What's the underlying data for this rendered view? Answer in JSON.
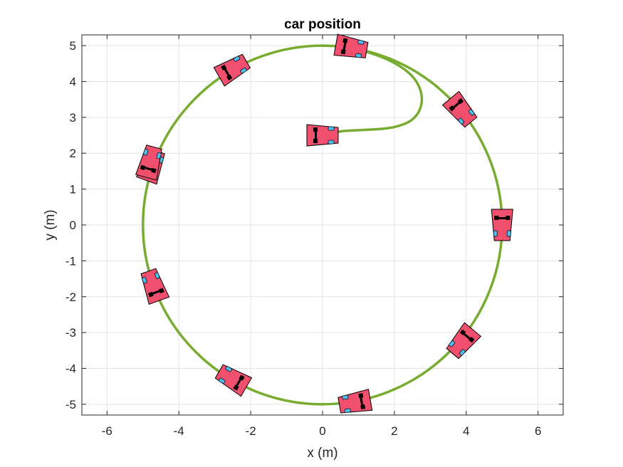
{
  "chart_data": {
    "type": "line",
    "title": "car position",
    "xlabel": "x (m)",
    "ylabel": "y (m)",
    "xlim": [
      -6.7,
      6.7
    ],
    "ylim": [
      -5.3,
      5.3
    ],
    "xticks": [
      -6,
      -4,
      -2,
      0,
      2,
      4,
      6
    ],
    "yticks": [
      -5,
      -4,
      -3,
      -2,
      -1,
      0,
      1,
      2,
      3,
      4,
      5
    ],
    "xtick_labels": [
      "-6",
      "-4",
      "-2",
      "0",
      "2",
      "4",
      "6"
    ],
    "ytick_labels": [
      "-5",
      "-4",
      "-3",
      "-2",
      "-1",
      "0",
      "1",
      "2",
      "3",
      "4",
      "5"
    ],
    "grid": true,
    "series": [
      {
        "color": "#77AC30",
        "path": {
          "approach": [
            {
              "x": 0.15,
              "y": 2.5
            },
            {
              "x": 0.45,
              "y": 2.62
            },
            {
              "x": 1.2,
              "y": 2.65
            },
            {
              "x": 2.0,
              "y": 2.7
            },
            {
              "x": 2.6,
              "y": 2.95
            },
            {
              "x": 2.82,
              "y": 3.5
            },
            {
              "x": 2.6,
              "y": 4.1
            },
            {
              "x": 2.0,
              "y": 4.55
            },
            {
              "x": 1.2,
              "y": 4.85
            },
            {
              "x": 0.7,
              "y": 4.95
            }
          ],
          "circle": {
            "cx": 0,
            "cy": 0,
            "r": 5
          }
        }
      }
    ],
    "car_markers": [
      {
        "x": 0.0,
        "y": 2.5,
        "heading_deg": 0
      },
      {
        "x": 0.8,
        "y": 4.95,
        "heading_deg": -10
      },
      {
        "x": 3.85,
        "y": 3.2,
        "heading_deg": -50
      },
      {
        "x": 5.0,
        "y": 0.0,
        "heading_deg": -90
      },
      {
        "x": 3.9,
        "y": -3.25,
        "heading_deg": -130
      },
      {
        "x": 0.9,
        "y": -4.95,
        "heading_deg": -170
      },
      {
        "x": -2.5,
        "y": -4.3,
        "heading_deg": -210
      },
      {
        "x": -4.7,
        "y": -1.7,
        "heading_deg": -250
      },
      {
        "x": -4.75,
        "y": 1.65,
        "heading_deg": -290
      },
      {
        "x": -2.5,
        "y": 4.35,
        "heading_deg": -330
      },
      {
        "x": -4.8,
        "y": 1.75,
        "heading_deg": -285
      }
    ],
    "marker_colors": {
      "body": "#F0506E",
      "window": "#4DBEEE",
      "tire": "#000000",
      "outline": "#000000"
    }
  }
}
